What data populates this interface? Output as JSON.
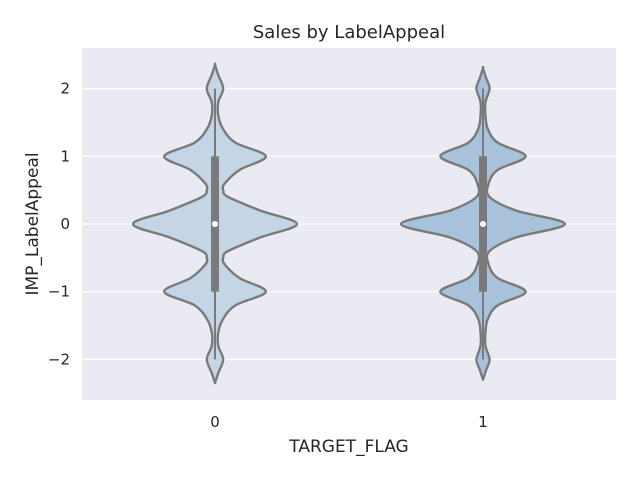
{
  "chart_data": {
    "type": "violin",
    "title": "Sales by LabelAppeal",
    "xlabel": "TARGET_FLAG",
    "ylabel": "IMP_LabelAppeal",
    "categories": [
      "0",
      "1"
    ],
    "ylim": [
      -2.6,
      2.6
    ],
    "yticks": [
      2,
      1,
      0,
      -1,
      -2
    ],
    "ytick_labels": [
      "2",
      "1",
      "0",
      "−1",
      "−2"
    ],
    "grid": true,
    "colors": {
      "background": "#EAEAF2",
      "grid": "#FFFFFF",
      "violin_outline": "#7A7A7A",
      "violin_fill": [
        "#C4D5E5",
        "#A9C2DC"
      ],
      "box": "#7A7A7A",
      "median": "#FFFFFF"
    },
    "series": [
      {
        "category": "0",
        "median": 0,
        "q1": -1,
        "q3": 1,
        "whisker_low": -2,
        "whisker_high": 2,
        "density_y": [
          -2.35,
          -2.2,
          -2.0,
          -1.8,
          -1.6,
          -1.4,
          -1.2,
          -1.0,
          -0.8,
          -0.6,
          -0.5,
          -0.4,
          -0.2,
          0.0,
          0.2,
          0.4,
          0.5,
          0.6,
          0.8,
          1.0,
          1.2,
          1.4,
          1.6,
          1.8,
          2.0,
          2.2,
          2.35
        ],
        "density_w": [
          0.0,
          0.04,
          0.1,
          0.04,
          0.04,
          0.1,
          0.25,
          0.62,
          0.3,
          0.12,
          0.1,
          0.16,
          0.55,
          1.0,
          0.55,
          0.16,
          0.1,
          0.12,
          0.3,
          0.62,
          0.25,
          0.1,
          0.04,
          0.04,
          0.1,
          0.04,
          0.0
        ]
      },
      {
        "category": "1",
        "median": 0,
        "q1": -1,
        "q3": 1,
        "whisker_low": -2,
        "whisker_high": 2,
        "density_y": [
          -2.3,
          -2.15,
          -2.0,
          -1.8,
          -1.6,
          -1.4,
          -1.2,
          -1.0,
          -0.8,
          -0.6,
          -0.4,
          -0.2,
          0.0,
          0.2,
          0.4,
          0.6,
          0.8,
          1.0,
          1.2,
          1.4,
          1.6,
          1.8,
          2.0,
          2.15,
          2.3
        ],
        "density_w": [
          0.0,
          0.04,
          0.08,
          0.03,
          0.03,
          0.06,
          0.18,
          0.52,
          0.18,
          0.07,
          0.08,
          0.4,
          1.0,
          0.4,
          0.08,
          0.07,
          0.18,
          0.52,
          0.18,
          0.06,
          0.03,
          0.03,
          0.08,
          0.04,
          0.0
        ]
      }
    ]
  }
}
